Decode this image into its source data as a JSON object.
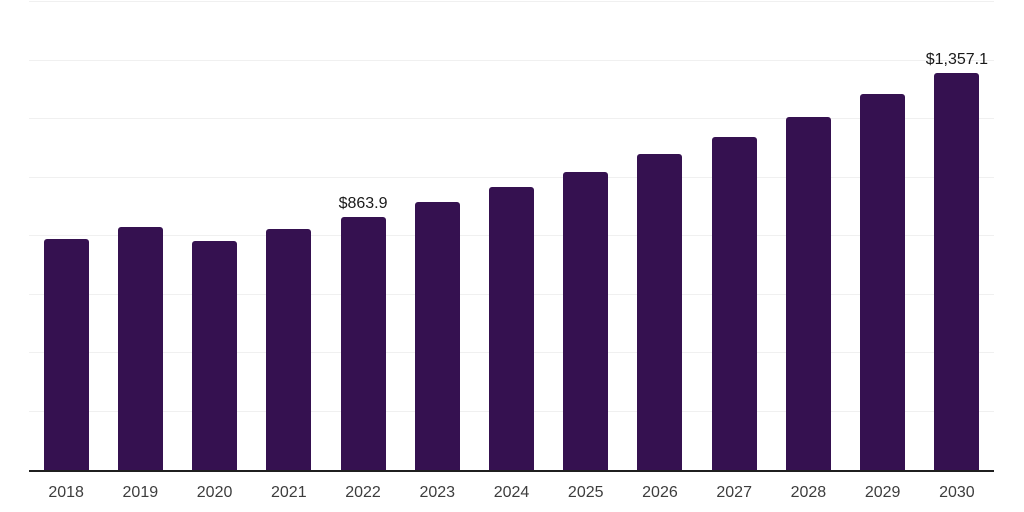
{
  "chart_data": {
    "type": "bar",
    "categories": [
      "2018",
      "2019",
      "2020",
      "2021",
      "2022",
      "2023",
      "2024",
      "2025",
      "2026",
      "2027",
      "2028",
      "2029",
      "2030"
    ],
    "values": [
      789,
      830,
      782,
      823,
      863.9,
      915,
      966,
      1020,
      1082,
      1139,
      1207,
      1286,
      1357.1
    ],
    "data_labels": [
      {
        "category": "2022",
        "text": "$863.9"
      },
      {
        "category": "2030",
        "text": "$1,357.1"
      }
    ],
    "ylim": [
      0,
      1600
    ],
    "gridline_interval": 200,
    "grid": "horizontal",
    "legend": "none",
    "y_axis_labels_visible": false,
    "bar_color": "#351150",
    "background_color": "#ffffff",
    "gridline_color": "#f0f0f0",
    "axis_line_color": "#1f1f1f",
    "x_label_color": "#3d3d3d",
    "data_label_color": "#1a1a1a"
  }
}
